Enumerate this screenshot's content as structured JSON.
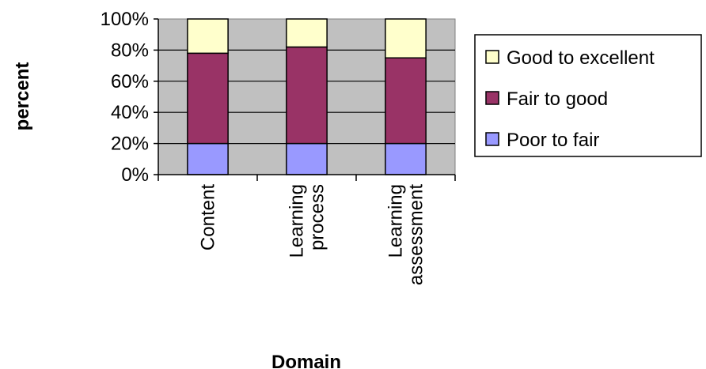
{
  "chart_data": {
    "type": "bar",
    "stacked": true,
    "percent_stacked": true,
    "categories": [
      [
        "Content"
      ],
      [
        "Learning",
        "process"
      ],
      [
        "Learning",
        "assessment"
      ]
    ],
    "series": [
      {
        "name": "Poor to fair",
        "values": [
          20,
          20,
          20
        ],
        "color": "#9999FF"
      },
      {
        "name": "Fair to good",
        "values": [
          58,
          62,
          55
        ],
        "color": "#993366"
      },
      {
        "name": "Good to excellent",
        "values": [
          22,
          18,
          25
        ],
        "color": "#FFFFCC"
      }
    ],
    "xlabel": "Domain",
    "ylabel": "percent",
    "ylim": [
      0,
      100
    ],
    "yticks": [
      "0%",
      "20%",
      "40%",
      "60%",
      "80%",
      "100%"
    ],
    "grid": true,
    "plot_background": "#C0C0C0",
    "legend_position": "right",
    "legend_order": [
      "Good to excellent",
      "Fair to good",
      "Poor to fair"
    ]
  }
}
